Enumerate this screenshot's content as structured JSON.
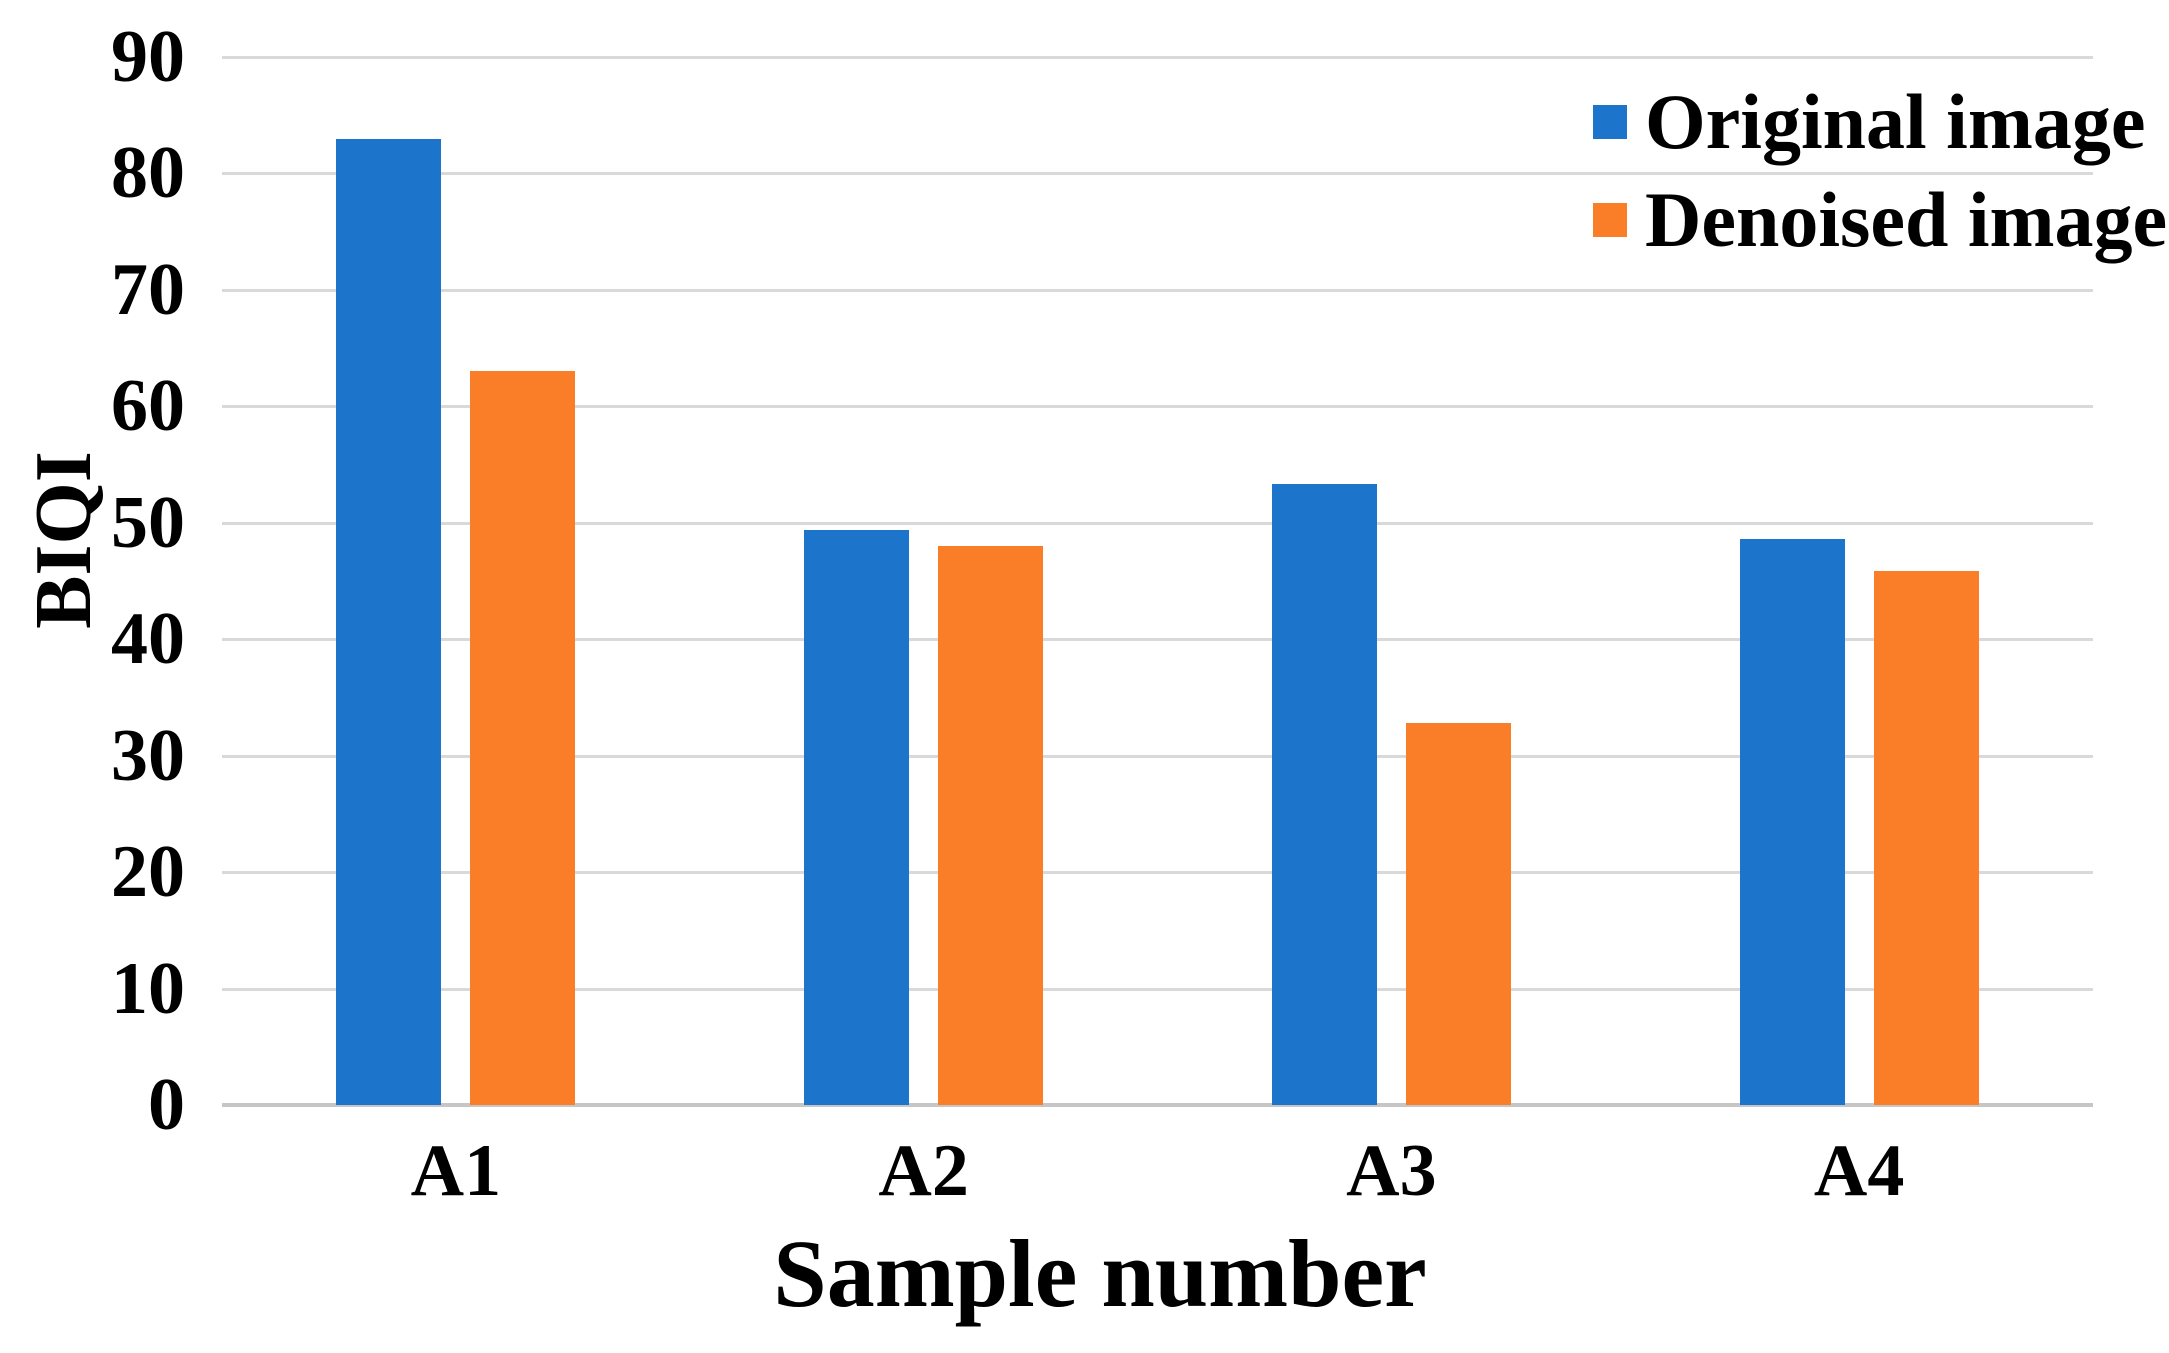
{
  "chart_data": {
    "type": "bar",
    "title": "",
    "categories": [
      "A1",
      "A2",
      "A3",
      "A4"
    ],
    "series": [
      {
        "name": "Original image",
        "color": "#1C74CB",
        "values": [
          83,
          49.4,
          53.3,
          48.6
        ]
      },
      {
        "name": "Denoised image",
        "color": "#FA7D28",
        "values": [
          63,
          48,
          32.8,
          45.9
        ]
      }
    ],
    "xlabel": "Sample number",
    "ylabel": "BIQI",
    "ylim": [
      0,
      90
    ],
    "yticks": [
      0,
      10,
      20,
      30,
      40,
      50,
      60,
      70,
      80,
      90
    ],
    "grid": "horizontal",
    "gridline_color": "#D9D9D9",
    "axis_line_color": "#C6C6C6",
    "legend_position": "top-right",
    "text_color": "#000000",
    "background_color": "#FFFFFF"
  }
}
